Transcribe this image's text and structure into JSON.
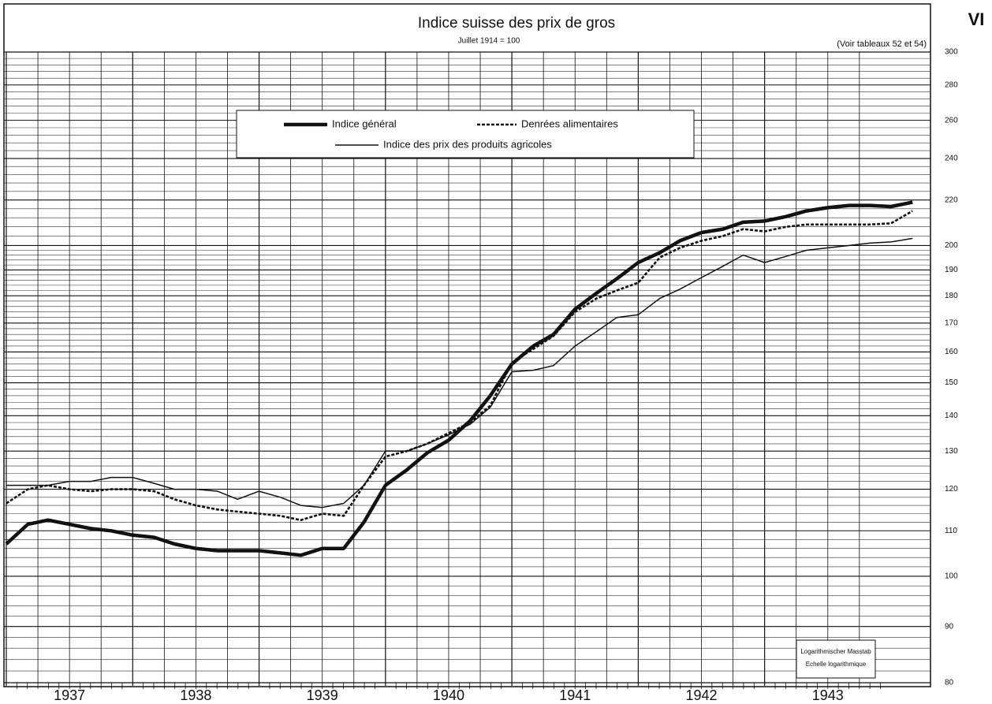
{
  "chart_data": {
    "type": "line",
    "title": "Indice suisse des prix de gros",
    "subtitle": "Juillet 1914 = 100",
    "annotations": [
      "(Voir tableaux 52 et 54)",
      "VI",
      "Logarithmischer Masstab",
      "Echelle logarithmique"
    ],
    "yscale": "log",
    "grid": true,
    "legend": "top",
    "xlim": [
      1937,
      1944.3
    ],
    "xticks": [
      {
        "value": 1937,
        "label": "1937"
      },
      {
        "value": 1938,
        "label": "1938"
      },
      {
        "value": 1939,
        "label": "1939"
      },
      {
        "value": 1940,
        "label": "1940"
      },
      {
        "value": 1941,
        "label": "1941"
      },
      {
        "value": 1942,
        "label": "1942"
      },
      {
        "value": 1943,
        "label": "1943"
      }
    ],
    "ylim": [
      80,
      300
    ],
    "yticks": [
      80,
      90,
      100,
      110,
      120,
      130,
      140,
      150,
      160,
      170,
      180,
      190,
      200,
      220,
      240,
      260,
      280,
      300
    ],
    "x": [
      1937,
      1937.17,
      1937.33,
      1937.5,
      1937.67,
      1937.83,
      1938,
      1938.17,
      1938.33,
      1938.5,
      1938.67,
      1938.83,
      1939,
      1939.17,
      1939.33,
      1939.5,
      1939.67,
      1939.83,
      1940,
      1940.17,
      1940.33,
      1940.5,
      1940.67,
      1940.83,
      1941,
      1941.17,
      1941.33,
      1941.5,
      1941.67,
      1941.83,
      1942,
      1942.17,
      1942.33,
      1942.5,
      1942.67,
      1942.83,
      1943,
      1943.17,
      1943.33,
      1943.5,
      1943.67,
      1943.83,
      1944,
      1944.17
    ],
    "series": [
      {
        "name": "Indice général",
        "color": "#111111",
        "style": "thick",
        "values": [
          107,
          111.5,
          112.5,
          111.5,
          110.5,
          110,
          109,
          108.5,
          107,
          106,
          105.5,
          105.5,
          105.5,
          105,
          104.5,
          106,
          106,
          112,
          121,
          125,
          129.5,
          133,
          138.5,
          146,
          156,
          162,
          166,
          175,
          181,
          186.5,
          193,
          197,
          202,
          205.5,
          207,
          210,
          210.5,
          212.5,
          215,
          216.5,
          217.5,
          217.5,
          217,
          219
        ]
      },
      {
        "name": "Denrées alimentaires",
        "color": "#111111",
        "style": "dashed",
        "values": [
          116.5,
          120,
          121,
          120,
          119.5,
          120,
          120,
          119.5,
          117.5,
          116,
          115,
          114.5,
          114,
          113.5,
          112.5,
          114,
          113.5,
          121,
          128.5,
          130,
          132,
          135,
          138,
          143,
          156.5,
          161,
          165.5,
          174,
          179,
          182,
          185,
          195,
          199,
          202,
          204,
          207,
          206,
          208,
          209,
          209,
          209,
          209,
          209.5,
          215
        ]
      },
      {
        "name": "Indice des prix des produits agricoles",
        "color": "#111111",
        "style": "thin",
        "values": [
          121,
          121,
          121,
          122,
          122,
          123,
          123,
          121.5,
          120,
          120,
          119.5,
          117.5,
          119.5,
          118,
          116,
          115.5,
          116.5,
          121,
          130,
          130,
          132,
          134.5,
          137.5,
          142.5,
          153.5,
          154,
          155.5,
          162,
          167,
          172,
          173,
          179,
          182.5,
          187,
          191.5,
          196,
          193,
          195.5,
          198,
          199,
          200,
          201,
          201.5,
          203
        ]
      }
    ]
  }
}
